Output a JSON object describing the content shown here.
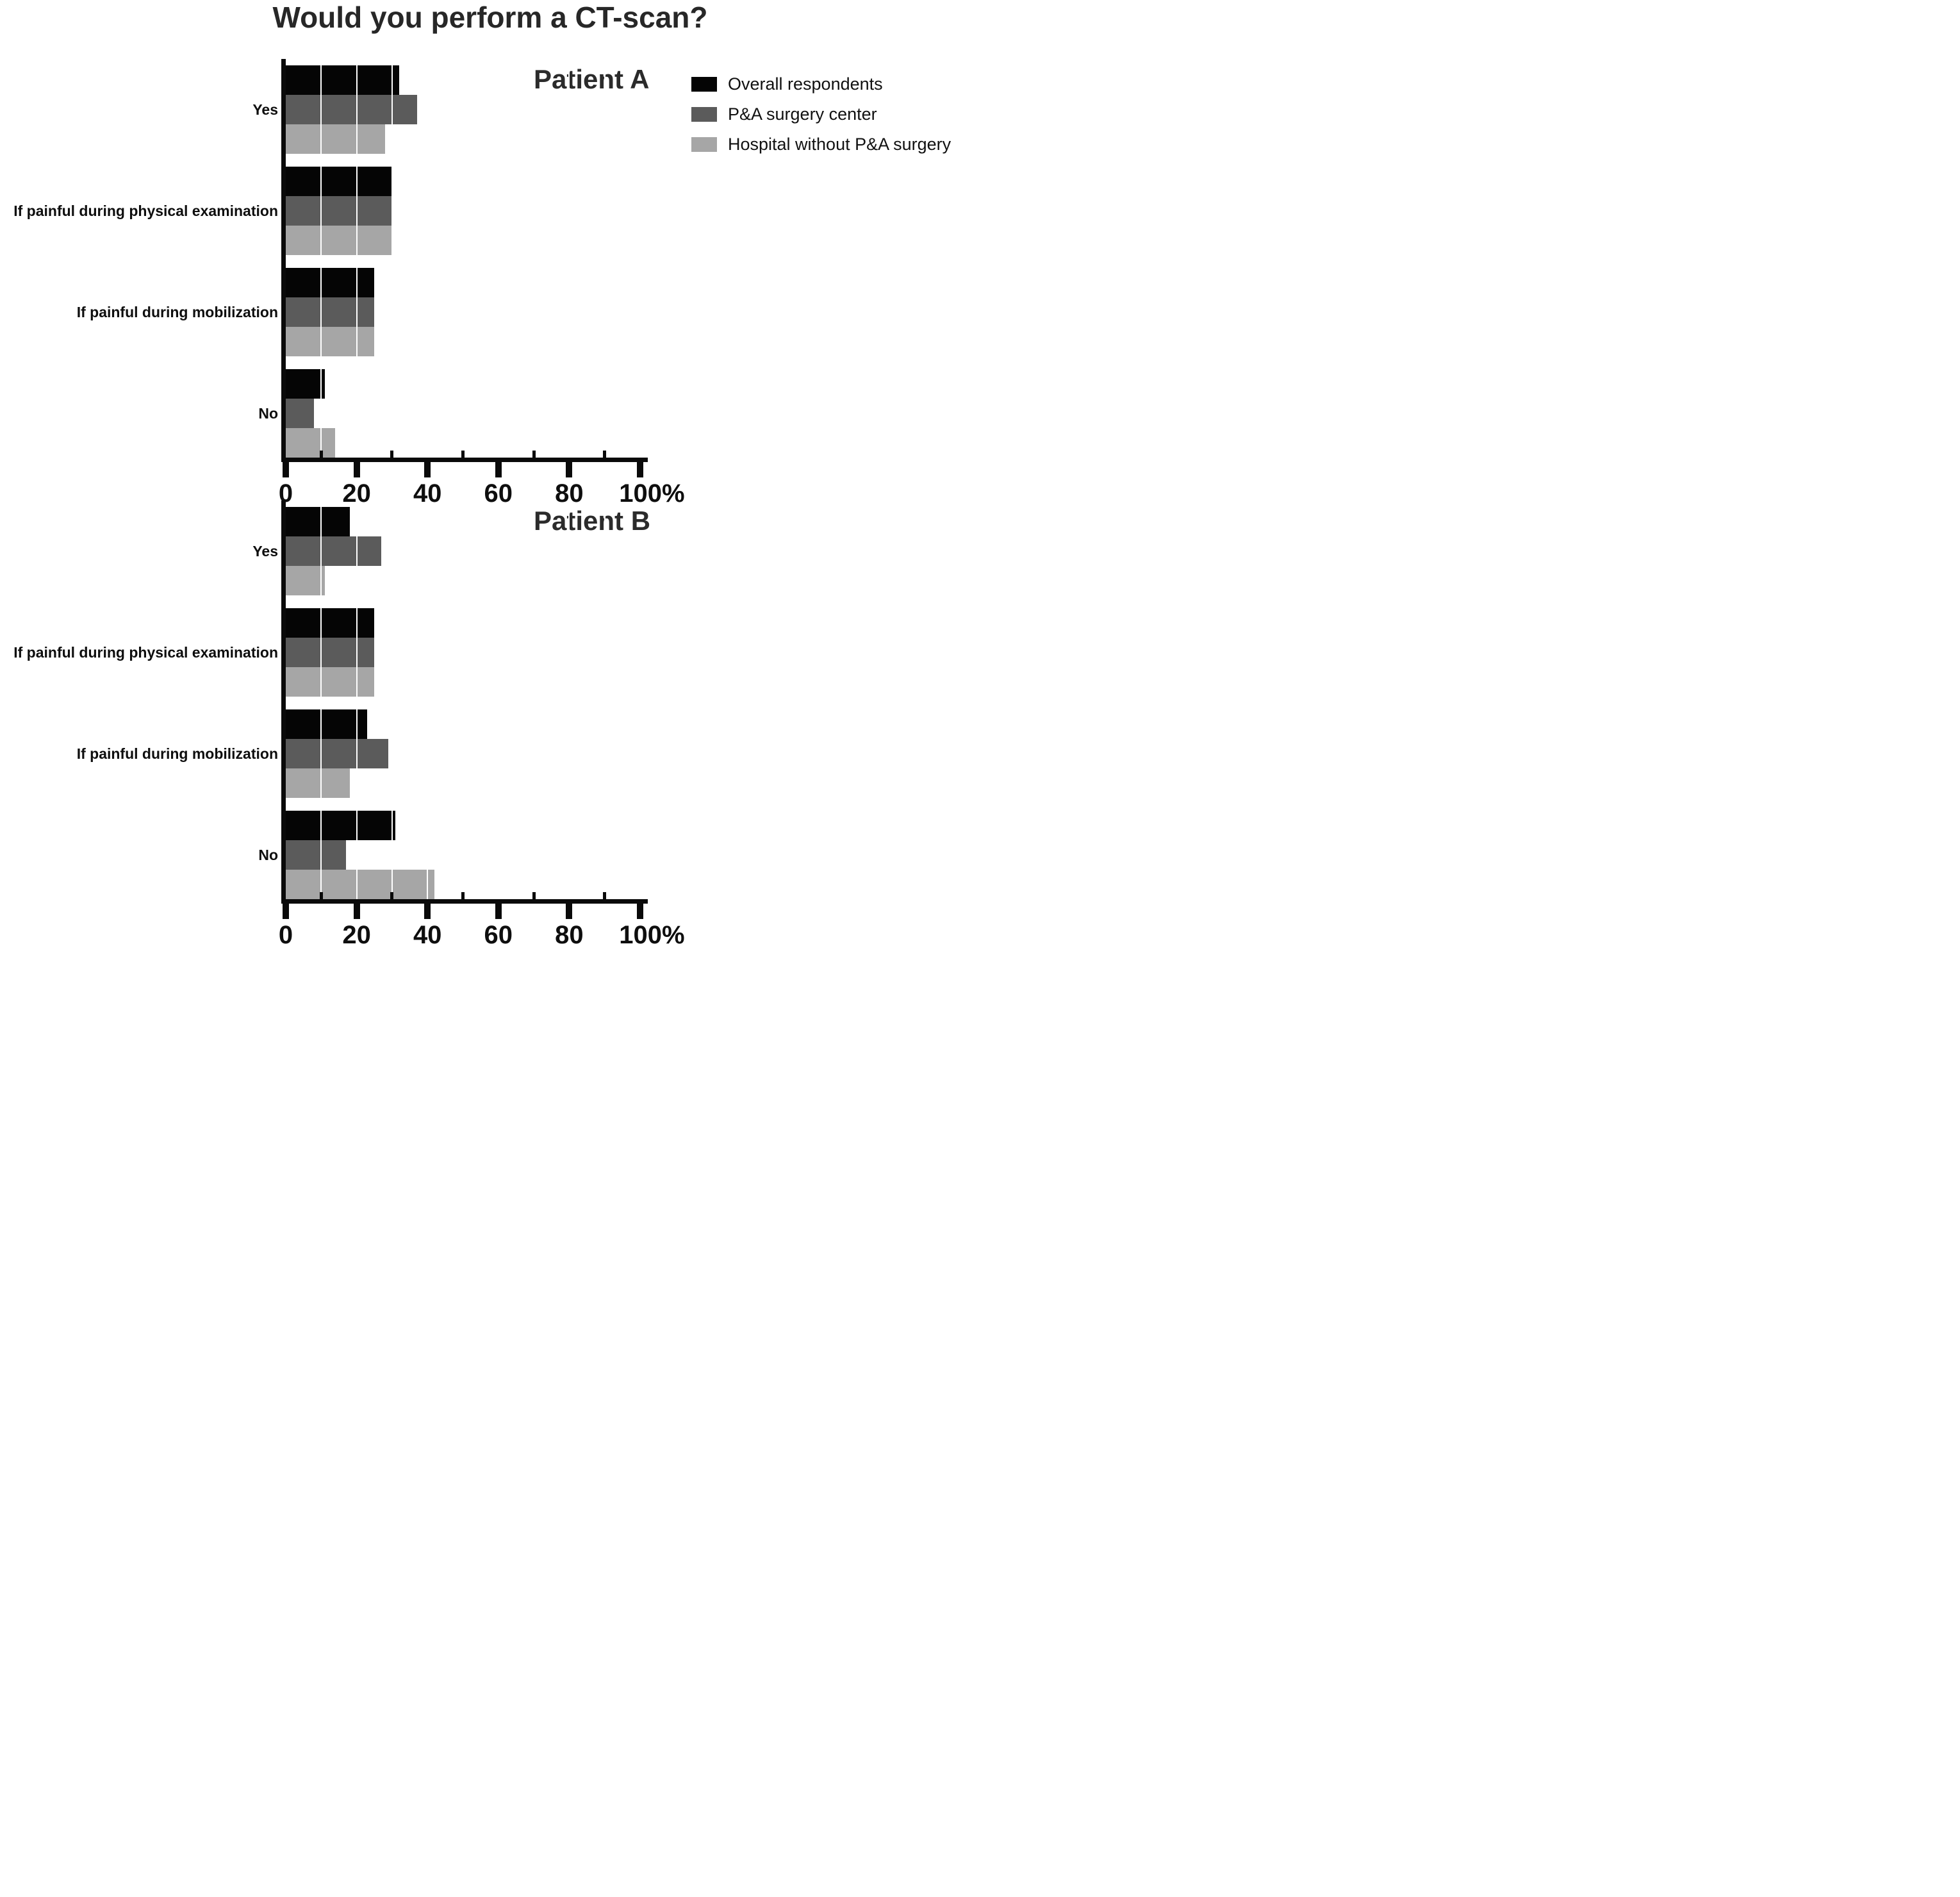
{
  "title": "Would you perform a CT-scan?",
  "x_axis": {
    "ticks": [
      0,
      20,
      40,
      60,
      80,
      100
    ],
    "unit_suffix": "%",
    "minor_ticks": [
      10,
      30,
      50,
      70,
      90
    ]
  },
  "legend": [
    {
      "label": "Overall respondents",
      "color": "#050505"
    },
    {
      "label": "P&A surgery center",
      "color": "#5b5b5b"
    },
    {
      "label": "Hospital without P&A surgery",
      "color": "#a6a6a6"
    }
  ],
  "chart_data": [
    {
      "type": "bar",
      "orientation": "horizontal",
      "panel": "Patient A",
      "categories": [
        "Yes",
        "If painful during physical examination",
        "If painful during mobilization",
        "No"
      ],
      "series": [
        {
          "name": "Overall respondents",
          "values": [
            32,
            30,
            25,
            11
          ]
        },
        {
          "name": "P&A surgery center",
          "values": [
            37,
            30,
            25,
            8
          ]
        },
        {
          "name": "Hospital without P&A surgery",
          "values": [
            28,
            30,
            25,
            14
          ]
        }
      ],
      "xlim": [
        0,
        100
      ],
      "xlabel": "%",
      "grid": "white vertical lines every 10% drawn over bars",
      "legend_position": "top-right"
    },
    {
      "type": "bar",
      "orientation": "horizontal",
      "panel": "Patient B",
      "categories": [
        "Yes",
        "If painful during physical examination",
        "If painful during mobilization",
        "No"
      ],
      "series": [
        {
          "name": "Overall respondents",
          "values": [
            18,
            25,
            23,
            31
          ]
        },
        {
          "name": "P&A surgery center",
          "values": [
            27,
            25,
            29,
            17
          ]
        },
        {
          "name": "Hospital without P&A surgery",
          "values": [
            11,
            25,
            18,
            42
          ]
        }
      ],
      "xlim": [
        0,
        100
      ],
      "xlabel": "%",
      "grid": "white vertical lines every 10% drawn over bars",
      "legend_position": "none"
    }
  ]
}
